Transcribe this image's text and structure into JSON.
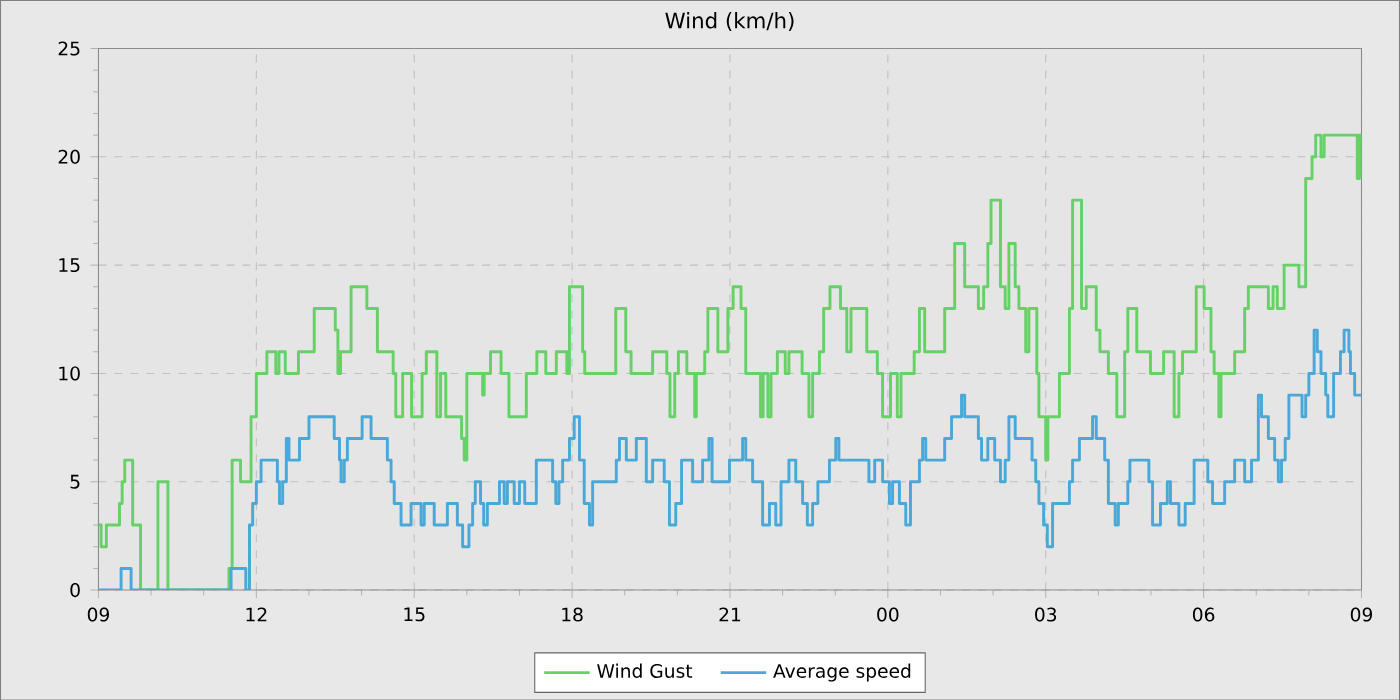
{
  "chart_data": {
    "type": "step",
    "title": "Wind (km/h)",
    "xlim": [
      9,
      33
    ],
    "ylim": [
      0,
      25
    ],
    "xticks": [
      {
        "value": 9,
        "label": "09"
      },
      {
        "value": 12,
        "label": "12"
      },
      {
        "value": 15,
        "label": "15"
      },
      {
        "value": 18,
        "label": "18"
      },
      {
        "value": 21,
        "label": "21"
      },
      {
        "value": 24,
        "label": "00"
      },
      {
        "value": 27,
        "label": "03"
      },
      {
        "value": 30,
        "label": "06"
      },
      {
        "value": 33,
        "label": "09"
      }
    ],
    "yticks": [
      0,
      5,
      10,
      15,
      20,
      25
    ],
    "grid": true,
    "legend": "bottom",
    "marker": "none",
    "line_style": "solid",
    "series": [
      {
        "name": "Wind Gust",
        "color": "#66d166",
        "x": [
          9,
          9.05,
          9.15,
          9.4,
          9.45,
          9.5,
          9.65,
          9.8,
          10.13,
          10.32,
          11.48,
          11.54,
          11.7,
          11.9,
          12,
          12.2,
          12.37,
          12.43,
          12.55,
          12.8,
          13.1,
          13.5,
          13.55,
          13.6,
          13.8,
          14.1,
          14.3,
          14.6,
          14.65,
          14.78,
          14.95,
          15.15,
          15.23,
          15.43,
          15.5,
          15.6,
          15.9,
          15.95,
          16,
          16.3,
          16.33,
          16.45,
          16.65,
          16.8,
          17.13,
          17.33,
          17.5,
          17.7,
          17.9,
          17.95,
          18.2,
          18.24,
          18.83,
          19.02,
          19.12,
          19.53,
          19.8,
          19.86,
          19.95,
          20.02,
          20.18,
          20.33,
          20.36,
          20.52,
          20.58,
          20.77,
          20.96,
          21.06,
          21.21,
          21.3,
          21.58,
          21.63,
          21.72,
          21.78,
          21.9,
          22.05,
          22.12,
          22.37,
          22.5,
          22.57,
          22.7,
          22.78,
          22.9,
          23.1,
          23.22,
          23.3,
          23.6,
          23.8,
          23.9,
          24.05,
          24.18,
          24.25,
          24.5,
          24.6,
          24.7,
          25.08,
          25.27,
          25.46,
          25.72,
          25.82,
          25.9,
          25.96,
          26.14,
          26.23,
          26.3,
          26.42,
          26.49,
          26.62,
          26.68,
          26.83,
          26.87,
          27.0,
          27.04,
          27.26,
          27.45,
          27.51,
          27.68,
          27.77,
          27.96,
          28.03,
          28.19,
          28.35,
          28.5,
          28.56,
          28.73,
          28.99,
          29.24,
          29.44,
          29.53,
          29.6,
          29.86,
          30.01,
          30.14,
          30.2,
          30.29,
          30.33,
          30.59,
          30.78,
          30.85,
          31.23,
          31.32,
          31.4,
          31.53,
          31.81,
          31.94,
          32.06,
          32.13,
          32.23,
          32.29,
          32.92,
          32.96,
          33
        ],
        "values": [
          3,
          2,
          3,
          4,
          5,
          6,
          3,
          0,
          5,
          0,
          1,
          6,
          5,
          8,
          10,
          11,
          10,
          11,
          10,
          11,
          13,
          12,
          10,
          11,
          14,
          13,
          11,
          10,
          8,
          10,
          8,
          10,
          11,
          8,
          10,
          8,
          7,
          6,
          10,
          9,
          10,
          11,
          10,
          8,
          10,
          11,
          10,
          11,
          10,
          14,
          11,
          10,
          13,
          11,
          10,
          11,
          10,
          8,
          10,
          11,
          10,
          8,
          10,
          11,
          13,
          11,
          13,
          14,
          13,
          10,
          8,
          10,
          8,
          10,
          11,
          10,
          11,
          10,
          8,
          10,
          11,
          13,
          14,
          13,
          11,
          13,
          11,
          10,
          8,
          10,
          8,
          10,
          11,
          13,
          11,
          13,
          16,
          14,
          13,
          14,
          16,
          18,
          14,
          13,
          16,
          14,
          13,
          11,
          13,
          10,
          8,
          6,
          8,
          10,
          13,
          18,
          13,
          14,
          12,
          11,
          10,
          8,
          11,
          13,
          11,
          10,
          11,
          8,
          10,
          11,
          14,
          13,
          11,
          10,
          8,
          10,
          11,
          13,
          14,
          13,
          14,
          13,
          15,
          14,
          19,
          20,
          21,
          20,
          21,
          19,
          21,
          19
        ]
      },
      {
        "name": "Average speed",
        "color": "#4aa8d8",
        "x": [
          9,
          9.43,
          9.62,
          11.52,
          11.8,
          11.87,
          11.93,
          12.0,
          12.09,
          12.4,
          12.44,
          12.5,
          12.57,
          12.62,
          12.82,
          13.0,
          13.48,
          13.58,
          13.61,
          13.67,
          13.73,
          14.01,
          14.18,
          14.49,
          14.56,
          14.62,
          14.75,
          14.94,
          15.13,
          15.19,
          15.38,
          15.63,
          15.82,
          15.92,
          16.04,
          16.11,
          16.16,
          16.26,
          16.32,
          16.39,
          16.62,
          16.71,
          16.77,
          16.9,
          17.0,
          17.1,
          17.32,
          17.63,
          17.69,
          17.75,
          17.82,
          17.95,
          18.04,
          18.14,
          18.23,
          18.33,
          18.39,
          18.84,
          18.9,
          19.03,
          19.22,
          19.41,
          19.53,
          19.75,
          19.85,
          19.97,
          20.08,
          20.29,
          20.48,
          20.6,
          20.66,
          20.99,
          21.24,
          21.3,
          21.43,
          21.62,
          21.75,
          21.87,
          21.97,
          22.12,
          22.25,
          22.38,
          22.47,
          22.57,
          22.67,
          22.89,
          23.01,
          23.07,
          23.64,
          23.75,
          23.9,
          24.03,
          24.09,
          24.22,
          24.34,
          24.43,
          24.6,
          24.66,
          24.72,
          25.08,
          25.21,
          25.4,
          25.46,
          25.72,
          25.78,
          25.9,
          26.03,
          26.14,
          26.23,
          26.3,
          26.42,
          26.74,
          26.81,
          26.87,
          26.96,
          27.03,
          27.13,
          27.45,
          27.51,
          27.64,
          27.89,
          27.96,
          28.12,
          28.19,
          28.32,
          28.38,
          28.56,
          28.6,
          28.96,
          29.03,
          29.18,
          29.31,
          29.37,
          29.53,
          29.65,
          29.82,
          30.08,
          30.17,
          30.4,
          30.59,
          30.78,
          30.91,
          31.04,
          31.1,
          31.23,
          31.35,
          31.42,
          31.48,
          31.55,
          31.62,
          31.87,
          31.94,
          32.0,
          32.1,
          32.16,
          32.23,
          32.32,
          32.36,
          32.47,
          32.6,
          32.67,
          32.76,
          32.79,
          32.87,
          33
        ],
        "values": [
          0,
          1,
          0,
          1,
          0,
          3,
          4,
          5,
          6,
          5,
          4,
          5,
          7,
          6,
          7,
          8,
          7,
          6,
          5,
          6,
          7,
          8,
          7,
          6,
          5,
          4,
          3,
          4,
          3,
          4,
          3,
          4,
          3,
          2,
          3,
          4,
          5,
          4,
          3,
          4,
          5,
          4,
          5,
          4,
          5,
          4,
          6,
          5,
          4,
          5,
          6,
          7,
          8,
          6,
          4,
          3,
          5,
          6,
          7,
          6,
          7,
          5,
          6,
          5,
          3,
          4,
          6,
          5,
          6,
          7,
          5,
          6,
          7,
          6,
          5,
          3,
          4,
          3,
          5,
          6,
          5,
          4,
          3,
          4,
          5,
          6,
          7,
          6,
          5,
          6,
          5,
          4,
          5,
          4,
          3,
          5,
          6,
          7,
          6,
          7,
          8,
          9,
          8,
          7,
          6,
          7,
          6,
          5,
          6,
          8,
          7,
          6,
          5,
          4,
          3,
          2,
          4,
          5,
          6,
          7,
          8,
          7,
          6,
          4,
          3,
          4,
          5,
          6,
          5,
          3,
          4,
          5,
          4,
          3,
          4,
          6,
          5,
          4,
          5,
          6,
          5,
          6,
          9,
          8,
          7,
          6,
          5,
          6,
          7,
          9,
          8,
          9,
          10,
          12,
          11,
          10,
          9,
          8,
          10,
          11,
          12,
          11,
          10,
          9,
          9
        ]
      }
    ]
  }
}
